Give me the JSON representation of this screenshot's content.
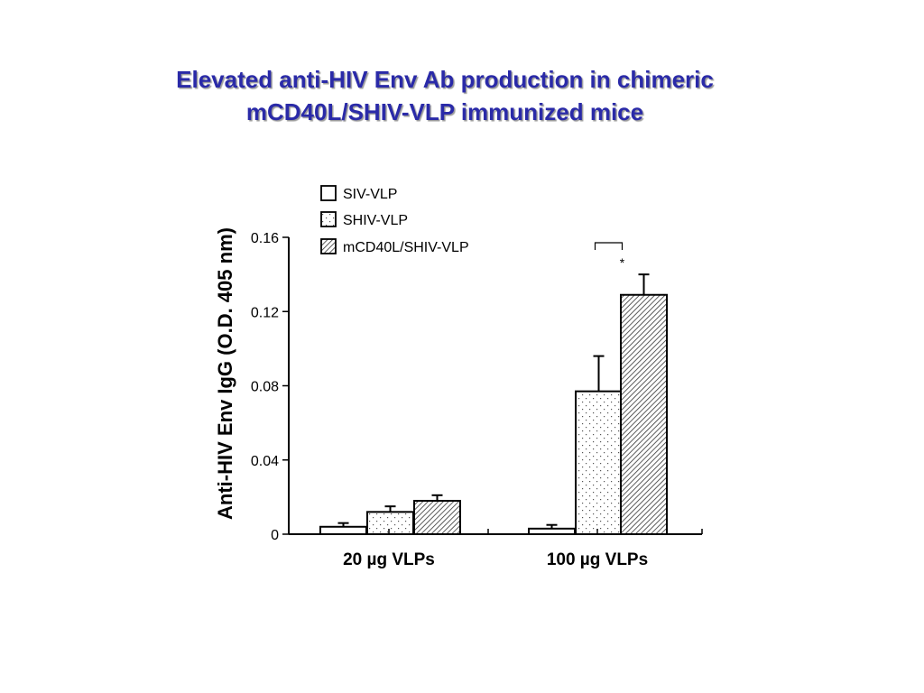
{
  "title": {
    "line1": "Elevated anti-HIV Env Ab production in chimeric",
    "line2": "mCD40L/SHIV-VLP immunized mice"
  },
  "chart_data": {
    "type": "bar",
    "ylabel": "Anti-HIV Env IgG (O.D. 405 nm)",
    "xlabel": "",
    "categories": [
      "20 µg VLPs",
      "100 µg VLPs"
    ],
    "ylim": [
      0,
      0.16
    ],
    "yticks": [
      "0.16",
      "0.12",
      "0.08",
      "0.04",
      "0"
    ],
    "ytick_values": [
      0.16,
      0.12,
      0.08,
      0.04,
      0
    ],
    "grid": false,
    "legend_position": "top-left",
    "series": [
      {
        "name": "SIV-VLP",
        "pattern": "open",
        "values": [
          0.004,
          0.003
        ],
        "errors": [
          0.002,
          0.002
        ]
      },
      {
        "name": "SHIV-VLP",
        "pattern": "dotted",
        "values": [
          0.012,
          0.077
        ],
        "errors": [
          0.003,
          0.019
        ]
      },
      {
        "name": "mCD40L/SHIV-VLP",
        "pattern": "hatched",
        "values": [
          0.018,
          0.129
        ],
        "errors": [
          0.003,
          0.011
        ]
      }
    ],
    "annotations": [
      {
        "text": "*",
        "category": "100 µg VLPs",
        "between": [
          "SHIV-VLP",
          "mCD40L/SHIV-VLP"
        ]
      }
    ],
    "colors": {
      "title": "#2a2aa8",
      "bars": "#000000"
    }
  }
}
